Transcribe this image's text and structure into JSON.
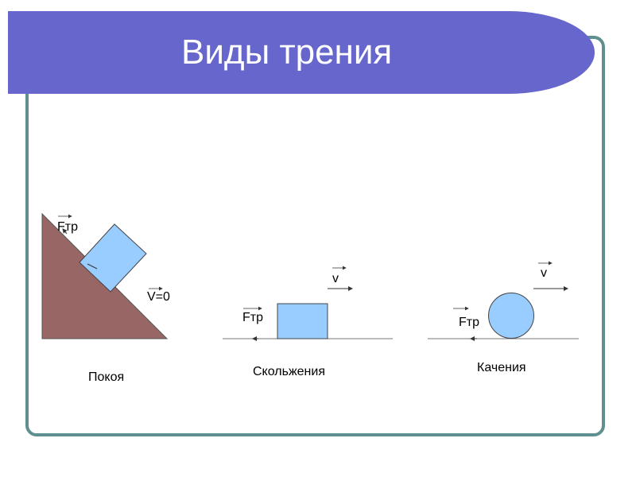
{
  "slide": {
    "title": "Виды трения",
    "colors": {
      "banner": "#6666cc",
      "frame": "#5f8f8f",
      "block": "#99ccff",
      "incline": "#996666"
    }
  },
  "diagrams": [
    {
      "caption": "Покоя",
      "force_label": "Fтр",
      "velocity_label": "V=0"
    },
    {
      "caption": "Скольжения",
      "force_label": "Fтр",
      "velocity_label": "v"
    },
    {
      "caption": "Качения",
      "force_label": "Fтр",
      "velocity_label": "v"
    }
  ]
}
